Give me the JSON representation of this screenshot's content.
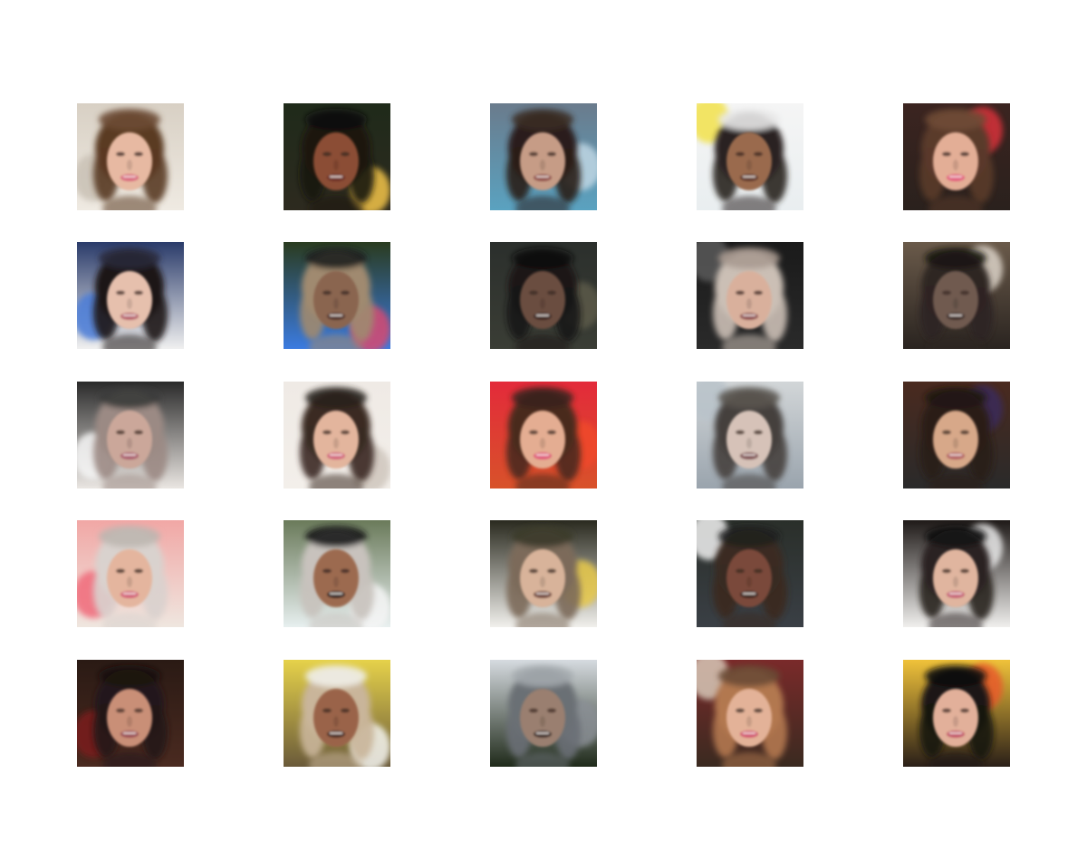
{
  "figure": {
    "rows": 5,
    "cols": 5,
    "samples": [
      {
        "bg_top": "#d8d0c4",
        "bg_bottom": "#efeae2",
        "accent": "#c9c1b5",
        "hair": "#5a3a22",
        "skin": "#e7b9a2",
        "mouth": "#d8607a",
        "top_band": "#6b4a35"
      },
      {
        "bg_top": "#1f2a1a",
        "bg_bottom": "#2d2a1f",
        "accent": "#f3c44a",
        "hair": "#1b1410",
        "skin": "#8b4d34",
        "mouth": "#6a2a24",
        "top_band": "#111111"
      },
      {
        "bg_top": "#6a7b8c",
        "bg_bottom": "#5aa2c0",
        "accent": "#c0d7e4",
        "hair": "#2a1e1a",
        "skin": "#c69c86",
        "mouth": "#8f4a44",
        "top_band": "#3a2c25"
      },
      {
        "bg_top": "#f5f5f5",
        "bg_bottom": "#e9eef0",
        "accent": "#f2e24c",
        "hair": "#2a2320",
        "skin": "#9a6a4e",
        "mouth": "#5c3026",
        "top_band": "#e8e8e8"
      },
      {
        "bg_top": "#3b2420",
        "bg_bottom": "#2a211d",
        "accent": "#d8303a",
        "hair": "#5a3a2a",
        "skin": "#e3ae96",
        "mouth": "#e2567b",
        "top_band": "#6f4a35"
      },
      {
        "bg_top": "#2a3b6a",
        "bg_bottom": "#f0f0f0",
        "accent": "#4a7bd8",
        "hair": "#1c1714",
        "skin": "#e6c0ad",
        "mouth": "#b65d6a",
        "top_band": "#2a2a3a"
      },
      {
        "bg_top": "#2a3b1f",
        "bg_bottom": "#3b7be0",
        "accent": "#d74a70",
        "hair": "#a08a70",
        "skin": "#8a6550",
        "mouth": "#50302a",
        "top_band": "#1f1f1f"
      },
      {
        "bg_top": "#2b2f2c",
        "bg_bottom": "#3a3d35",
        "accent": "#5c5a4a",
        "hair": "#1a1614",
        "skin": "#6a4d40",
        "mouth": "#3a241e",
        "top_band": "#0f0f0f"
      },
      {
        "bg_top": "#1a1a1a",
        "bg_bottom": "#2a2a2a",
        "accent": "#5a5a5a",
        "hair": "#cbbfb5",
        "skin": "#d9b09c",
        "mouth": "#8d4b4e",
        "top_band": "#a89a90"
      },
      {
        "bg_top": "#6a5a4a",
        "bg_bottom": "#2a2420",
        "accent": "#dcd3c8",
        "hair": "#2e2522",
        "skin": "#6f5a4f",
        "mouth": "#3e2c28",
        "top_band": "#1a1613"
      },
      {
        "bg_top": "#2a2a2a",
        "bg_bottom": "#eae6e2",
        "accent": "#f6f6f6",
        "hair": "#9b8a84",
        "skin": "#cba79a",
        "mouth": "#a9586a",
        "top_band": "#3a3a3a"
      },
      {
        "bg_top": "#efeae5",
        "bg_bottom": "#f3efea",
        "accent": "#cfc6bd",
        "hair": "#3a2a22",
        "skin": "#e3b59d",
        "mouth": "#d2607a",
        "top_band": "#2a221e"
      },
      {
        "bg_top": "#e32a3a",
        "bg_bottom": "#d8522a",
        "accent": "#f04a2a",
        "hair": "#4a2a1f",
        "skin": "#e4ad92",
        "mouth": "#e05177",
        "top_band": "#3a241c"
      },
      {
        "bg_top": "#d2d6d8",
        "bg_bottom": "#9aa4ad",
        "accent": "#b9c3ca",
        "hair": "#45413e",
        "skin": "#d6c2b8",
        "mouth": "#7c4a4e",
        "top_band": "#5a5450"
      },
      {
        "bg_top": "#4a2a1f",
        "bg_bottom": "#2a2a2a",
        "accent": "#3a2a5a",
        "hair": "#2a1e18",
        "skin": "#d7a889",
        "mouth": "#b25d60",
        "top_band": "#1f1713"
      },
      {
        "bg_top": "#f1a7a5",
        "bg_bottom": "#efe6df",
        "accent": "#f06a7a",
        "hair": "#d9d2ce",
        "skin": "#e4b59e",
        "mouth": "#d35a76",
        "top_band": "#bdb6b0"
      },
      {
        "bg_top": "#6a7a5a",
        "bg_bottom": "#e7efef",
        "accent": "#f5f5f5",
        "hair": "#c8c2bd",
        "skin": "#9c6a50",
        "mouth": "#2e1f1a",
        "top_band": "#1a1a1a"
      },
      {
        "bg_top": "#2a2a1f",
        "bg_bottom": "#f1f0ec",
        "accent": "#e8c94a",
        "hair": "#7c6a5a",
        "skin": "#d8b39a",
        "mouth": "#6a3a30",
        "top_band": "#3a3a2a"
      },
      {
        "bg_top": "#2a2f2a",
        "bg_bottom": "#3a3f45",
        "accent": "#f2f2f2",
        "hair": "#3a2a20",
        "skin": "#7a4a3a",
        "mouth": "#3a221c",
        "top_band": "#1f1f1f"
      },
      {
        "bg_top": "#1f1a18",
        "bg_bottom": "#f0efed",
        "accent": "#e9e9e9",
        "hair": "#2a2120",
        "skin": "#e0b59f",
        "mouth": "#c55d74",
        "top_band": "#111111"
      },
      {
        "bg_top": "#2a1a14",
        "bg_bottom": "#4a2a20",
        "accent": "#7a1f1a",
        "hair": "#24191a",
        "skin": "#c98f77",
        "mouth": "#9a4a52",
        "top_band": "#1a1211"
      },
      {
        "bg_top": "#e6d24a",
        "bg_bottom": "#6a5a3a",
        "accent": "#f5f5f0",
        "hair": "#c9b59a",
        "skin": "#9a6448",
        "mouth": "#4a2a22",
        "top_band": "#f0eee8"
      },
      {
        "bg_top": "#d6dbe0",
        "bg_bottom": "#1f2a1a",
        "accent": "#8a8f95",
        "hair": "#6a6f75",
        "skin": "#9a7f6f",
        "mouth": "#3e2a27",
        "top_band": "#a3a8ad"
      },
      {
        "bg_top": "#7a2a2a",
        "bg_bottom": "#3a2a20",
        "accent": "#d8c8b8",
        "hair": "#b2784f",
        "skin": "#e3b298",
        "mouth": "#d2506e",
        "top_band": "#6a4a35"
      },
      {
        "bg_top": "#f0c23a",
        "bg_bottom": "#2a1f18",
        "accent": "#e85a2a",
        "hair": "#1a1412",
        "skin": "#e2b09a",
        "mouth": "#c25066",
        "top_band": "#0f0f0f"
      }
    ]
  }
}
